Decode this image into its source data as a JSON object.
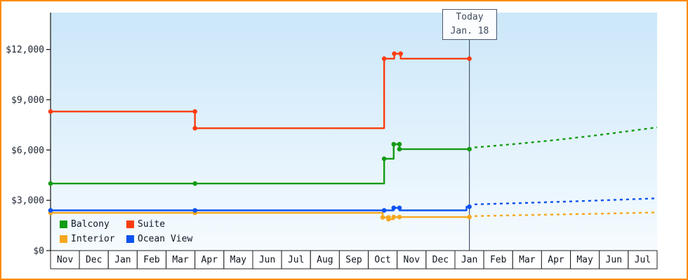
{
  "frame": {
    "border_color": "#ff8a00",
    "background": "#ffffff"
  },
  "chart_data": {
    "type": "line",
    "subtype": "step-price-history",
    "title": "",
    "xlabel": "",
    "ylabel": "",
    "grid": false,
    "legend_position": "bottom-left-inside",
    "x_axis": {
      "months": [
        "Nov",
        "Dec",
        "Jan",
        "Feb",
        "Mar",
        "Apr",
        "May",
        "Jun",
        "Jul",
        "Aug",
        "Sep",
        "Oct",
        "Nov",
        "Dec",
        "Jan",
        "Feb",
        "Mar",
        "Apr",
        "May",
        "Jun",
        "Jul"
      ]
    },
    "y_axis": {
      "tick_values": [
        0,
        3000,
        6000,
        9000,
        12000
      ],
      "tick_labels": [
        "$0",
        "$3,000",
        "$6,000",
        "$9,000",
        "$12,000"
      ],
      "range": [
        0,
        14200
      ]
    },
    "plot_background": {
      "gradient_top": "#cbe7f9",
      "gradient_bottom": "#f6fbff"
    },
    "today": {
      "month_index": 14,
      "line1": "Today",
      "line2": "Jan. 18"
    },
    "series": [
      {
        "name": "Balcony",
        "color": "#149c14",
        "points": [
          [
            -0.5,
            4000,
            1
          ],
          [
            4.5,
            4000,
            1
          ],
          [
            11.05,
            4000,
            0
          ],
          [
            11.05,
            5480,
            1
          ],
          [
            11.38,
            5480,
            0
          ],
          [
            11.38,
            6350,
            1
          ],
          [
            11.58,
            6350,
            1
          ],
          [
            11.58,
            6050,
            1
          ],
          [
            14,
            6050,
            1
          ]
        ],
        "projection": [
          [
            14.18,
            6150
          ],
          [
            15.5,
            6350
          ],
          [
            17,
            6600
          ],
          [
            18.5,
            6900
          ],
          [
            20.5,
            7350
          ]
        ]
      },
      {
        "name": "Suite",
        "color": "#fb3c11",
        "points": [
          [
            -0.5,
            8300,
            1
          ],
          [
            4.5,
            8300,
            1
          ],
          [
            4.5,
            7300,
            1
          ],
          [
            11.05,
            7300,
            0
          ],
          [
            11.05,
            11450,
            1
          ],
          [
            11.4,
            11450,
            0
          ],
          [
            11.4,
            11750,
            1
          ],
          [
            11.62,
            11750,
            1
          ],
          [
            11.62,
            11450,
            0
          ],
          [
            14,
            11450,
            1
          ]
        ],
        "projection": []
      },
      {
        "name": "Interior",
        "color": "#f6a71e",
        "points": [
          [
            -0.5,
            2250,
            1
          ],
          [
            4.5,
            2250,
            1
          ],
          [
            11.0,
            2250,
            0
          ],
          [
            11.0,
            1980,
            1
          ],
          [
            11.2,
            1980,
            1
          ],
          [
            11.2,
            1870,
            1
          ],
          [
            11.38,
            1870,
            0
          ],
          [
            11.38,
            2000,
            1
          ],
          [
            11.58,
            2000,
            1
          ],
          [
            14,
            2000,
            1
          ]
        ],
        "projection": [
          [
            14.18,
            2060
          ],
          [
            16.5,
            2140
          ],
          [
            18.5,
            2200
          ],
          [
            20.5,
            2280
          ]
        ]
      },
      {
        "name": "Ocean View",
        "color": "#0b52ef",
        "points": [
          [
            -0.5,
            2400,
            1
          ],
          [
            4.5,
            2400,
            1
          ],
          [
            11.05,
            2400,
            1
          ],
          [
            11.38,
            2400,
            0
          ],
          [
            11.38,
            2550,
            1
          ],
          [
            11.58,
            2550,
            1
          ],
          [
            11.58,
            2400,
            0
          ],
          [
            13.9,
            2400,
            0
          ],
          [
            13.9,
            2620,
            0
          ],
          [
            14,
            2620,
            1
          ]
        ],
        "projection": [
          [
            14.18,
            2760
          ],
          [
            16,
            2850
          ],
          [
            18,
            2960
          ],
          [
            20.5,
            3120
          ]
        ]
      }
    ],
    "legend": {
      "rows": [
        [
          "Balcony",
          "Suite"
        ],
        [
          "Interior",
          "Ocean View"
        ]
      ]
    }
  }
}
